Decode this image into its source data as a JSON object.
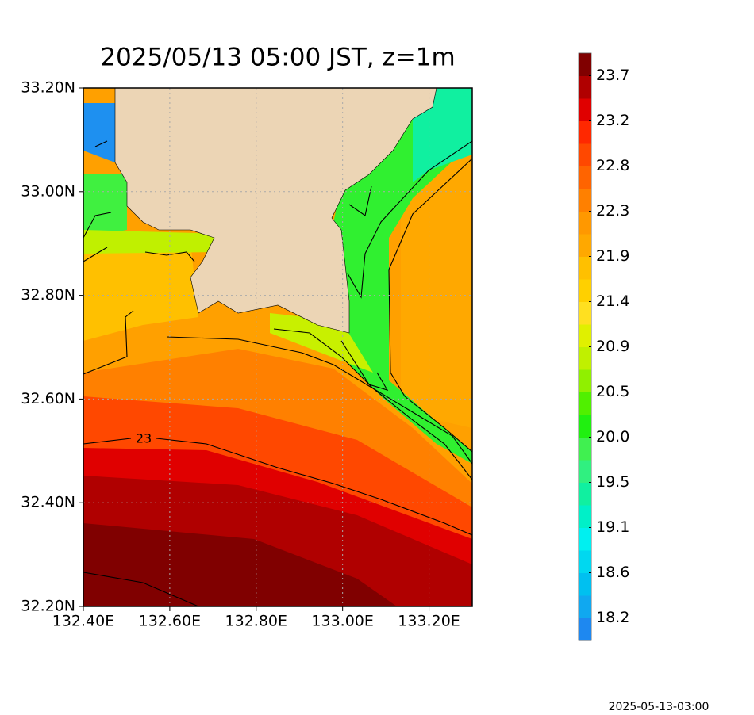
{
  "title": "2025/05/13 05:00 JST, z=1m",
  "timestamp": "2025-05-13-03:00",
  "map": {
    "xlim": [
      132.4,
      133.3
    ],
    "ylim": [
      32.2,
      33.2
    ],
    "xticks": [
      {
        "value": 132.4,
        "label": "132.40E"
      },
      {
        "value": 132.6,
        "label": "132.60E"
      },
      {
        "value": 132.8,
        "label": "132.80E"
      },
      {
        "value": 133.0,
        "label": "133.00E"
      },
      {
        "value": 133.2,
        "label": "133.20E"
      }
    ],
    "yticks": [
      {
        "value": 32.2,
        "label": "32.20N"
      },
      {
        "value": 32.4,
        "label": "32.40N"
      },
      {
        "value": 32.6,
        "label": "32.60N"
      },
      {
        "value": 32.8,
        "label": "32.80N"
      },
      {
        "value": 33.0,
        "label": "33.00N"
      },
      {
        "value": 33.2,
        "label": "33.20N"
      }
    ],
    "grid": true,
    "contour_label": "23"
  },
  "colorbar": {
    "ticks": [
      18.2,
      18.6,
      19.1,
      19.5,
      {
        "value": 20,
        "label": "20.0"
      },
      20.5,
      20.9,
      21.4,
      21.9,
      22.3,
      22.8,
      23.2,
      23.7
    ],
    "colors": [
      "#1e88f0",
      "#10a8f0",
      "#00c0f0",
      "#00d8f0",
      "#00f0f0",
      "#00f0c8",
      "#10f0a0",
      "#30f080",
      "#40f050",
      "#20f010",
      "#50f000",
      "#90f000",
      "#c0f000",
      "#e0f000",
      "#ffe020",
      "#ffd000",
      "#ffc000",
      "#ffa800",
      "#ff9800",
      "#ff8000",
      "#ff6400",
      "#ff4800",
      "#ff2800",
      "#e00000",
      "#b00000",
      "#800000"
    ]
  }
}
